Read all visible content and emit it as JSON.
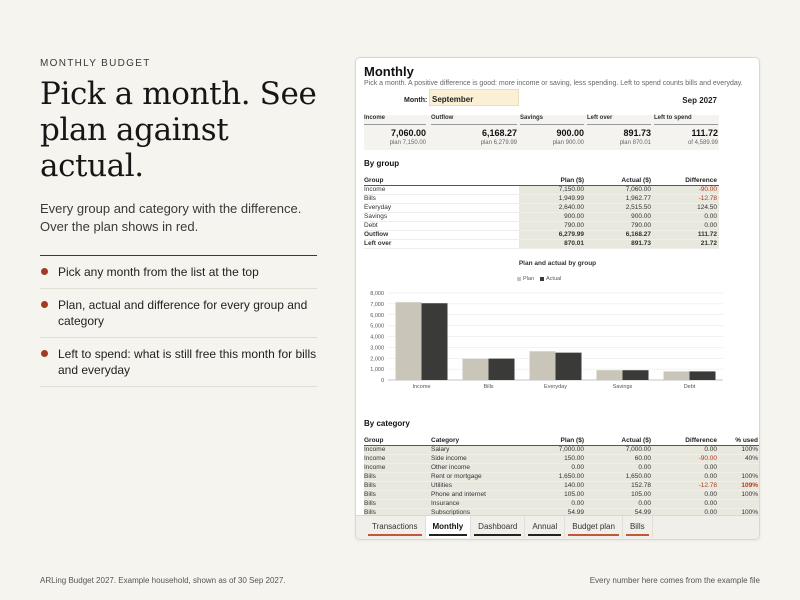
{
  "eyebrow": "MONTHLY BUDGET",
  "headline": "Pick a month. See plan against actual.",
  "subhead": "Every group and category with the difference. Over the plan shows in red.",
  "bullets": [
    "Pick any month from the list at the top",
    "Plan, actual and difference for every group and category",
    "Left to spend: what is still free this month for bills and everyday"
  ],
  "footer": {
    "left": "ARLing Budget 2027. Example household, shown as of 30 Sep 2027.",
    "right": "Every number here comes from the example file"
  },
  "colors": {
    "accent": "#a33a22",
    "plan": "#c9c5b9",
    "actual": "#3a3a38",
    "negative": "#b23b22"
  },
  "sheet": {
    "title": "Monthly",
    "description": "Pick a month. A positive difference is good: more income or saving, less spending. Left to spend counts bills and everyday.",
    "month_label": "Month:",
    "month_value": "September",
    "month_date": "Sep 2027",
    "kpis": [
      {
        "label": "Income",
        "value": "7,060.00",
        "sub": "plan 7,150.00"
      },
      {
        "label": "Outflow",
        "value": "6,168.27",
        "sub": "plan 6,279.99"
      },
      {
        "label": "Savings",
        "value": "900.00",
        "sub": "plan 900.00"
      },
      {
        "label": "Left over",
        "value": "891.73",
        "sub": "plan 870.01"
      },
      {
        "label": "Left to spend",
        "value": "111.72",
        "sub": "of 4,589.99"
      }
    ],
    "by_group": {
      "title": "By group",
      "headers": [
        "Group",
        "Plan ($)",
        "Actual ($)",
        "Difference"
      ],
      "rows": [
        {
          "group": "Income",
          "plan": "7,150.00",
          "actual": "7,060.00",
          "diff": "-90.00",
          "neg": true
        },
        {
          "group": "Bills",
          "plan": "1,949.99",
          "actual": "1,962.77",
          "diff": "-12.78",
          "neg": true
        },
        {
          "group": "Everyday",
          "plan": "2,640.00",
          "actual": "2,515.50",
          "diff": "124.50"
        },
        {
          "group": "Savings",
          "plan": "900.00",
          "actual": "900.00",
          "diff": "0.00"
        },
        {
          "group": "Debt",
          "plan": "790.00",
          "actual": "790.00",
          "diff": "0.00"
        },
        {
          "group": "Outflow",
          "plan": "6,279.99",
          "actual": "6,168.27",
          "diff": "111.72",
          "bold": true
        },
        {
          "group": "Left over",
          "plan": "870.01",
          "actual": "891.73",
          "diff": "21.72",
          "bold": true
        }
      ]
    },
    "by_category": {
      "title": "By category",
      "headers": [
        "Group",
        "Category",
        "Plan ($)",
        "Actual ($)",
        "Difference",
        "% used"
      ],
      "rows": [
        {
          "group": "Income",
          "category": "Salary",
          "plan": "7,000.00",
          "actual": "7,000.00",
          "diff": "0.00",
          "pct": "100%"
        },
        {
          "group": "Income",
          "category": "Side income",
          "plan": "150.00",
          "actual": "60.00",
          "diff": "-90.00",
          "pct": "40%",
          "neg": true
        },
        {
          "group": "Income",
          "category": "Other income",
          "plan": "0.00",
          "actual": "0.00",
          "diff": "0.00",
          "pct": ""
        },
        {
          "group": "Bills",
          "category": "Rent or mortgage",
          "plan": "1,650.00",
          "actual": "1,650.00",
          "diff": "0.00",
          "pct": "100%"
        },
        {
          "group": "Bills",
          "category": "Utilities",
          "plan": "140.00",
          "actual": "152.78",
          "diff": "-12.78",
          "pct": "109%",
          "neg": true,
          "pct_neg": true
        },
        {
          "group": "Bills",
          "category": "Phone and internet",
          "plan": "105.00",
          "actual": "105.00",
          "diff": "0.00",
          "pct": "100%"
        },
        {
          "group": "Bills",
          "category": "Insurance",
          "plan": "0.00",
          "actual": "0.00",
          "diff": "0.00",
          "pct": ""
        },
        {
          "group": "Bills",
          "category": "Subscriptions",
          "plan": "54.99",
          "actual": "54.99",
          "diff": "0.00",
          "pct": "100%"
        }
      ]
    },
    "tabs": [
      {
        "label": "Transactions",
        "underline": "#c0583a",
        "active": false
      },
      {
        "label": "Monthly",
        "underline": "#222222",
        "active": true
      },
      {
        "label": "Dashboard",
        "underline": "#222222",
        "active": false
      },
      {
        "label": "Annual",
        "underline": "#222222",
        "active": false
      },
      {
        "label": "Budget plan",
        "underline": "#c0583a",
        "active": false
      },
      {
        "label": "Bills",
        "underline": "#c0583a",
        "active": false
      }
    ]
  },
  "chart_data": {
    "type": "bar",
    "title": "Plan and actual by group",
    "categories": [
      "Income",
      "Bills",
      "Everyday",
      "Savings",
      "Debt"
    ],
    "series": [
      {
        "name": "Plan",
        "values": [
          7150.0,
          1949.99,
          2640.0,
          900.0,
          790.0
        ]
      },
      {
        "name": "Actual",
        "values": [
          7060.0,
          1962.77,
          2515.5,
          900.0,
          790.0
        ]
      }
    ],
    "ylim": [
      0,
      8000
    ],
    "yticks": [
      "0",
      "1,000",
      "2,000",
      "3,000",
      "4,000",
      "5,000",
      "6,000",
      "7,000",
      "8,000"
    ],
    "grid": true,
    "legend": "top-center"
  }
}
